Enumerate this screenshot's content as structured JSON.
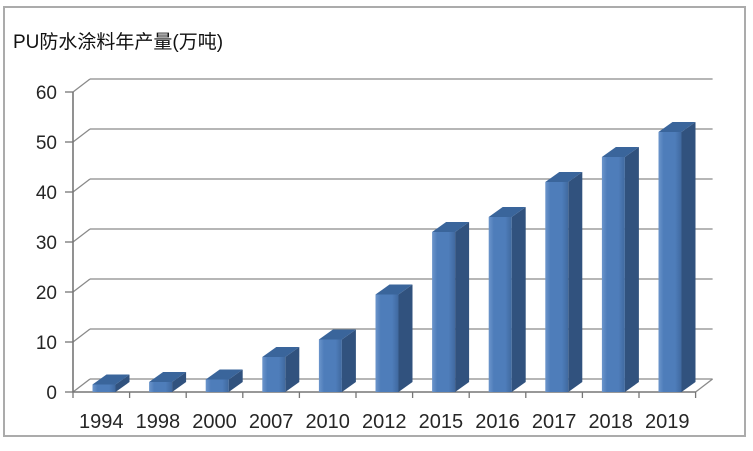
{
  "title": "PU防水涂料年产量(万吨)",
  "chart_data": {
    "type": "bar",
    "style": "3d-column",
    "title": "PU防水涂料年产量(万吨)",
    "categories": [
      "1994",
      "1998",
      "2000",
      "2007",
      "2010",
      "2012",
      "2015",
      "2016",
      "2017",
      "2018",
      "2019"
    ],
    "values": [
      1.5,
      2,
      2.5,
      7,
      10.5,
      19.5,
      32,
      35,
      42,
      47,
      52
    ],
    "unit": "万吨",
    "xlabel": "",
    "ylabel": "",
    "ylim": [
      0,
      60
    ],
    "yticks": [
      0,
      10,
      20,
      30,
      40,
      50,
      60
    ],
    "grid": true,
    "legend": "none",
    "colors": {
      "bar_front": "#4E7DBA",
      "bar_front_light": "#6C95CB",
      "bar_front_dark": "#40699F",
      "bar_top": "#3A659B",
      "bar_side": "#31527E",
      "gridline": "#8A8A8A",
      "axis": "#767676",
      "text": "#262626",
      "border": "#ABABAB",
      "background": "#FFFFFF"
    }
  }
}
